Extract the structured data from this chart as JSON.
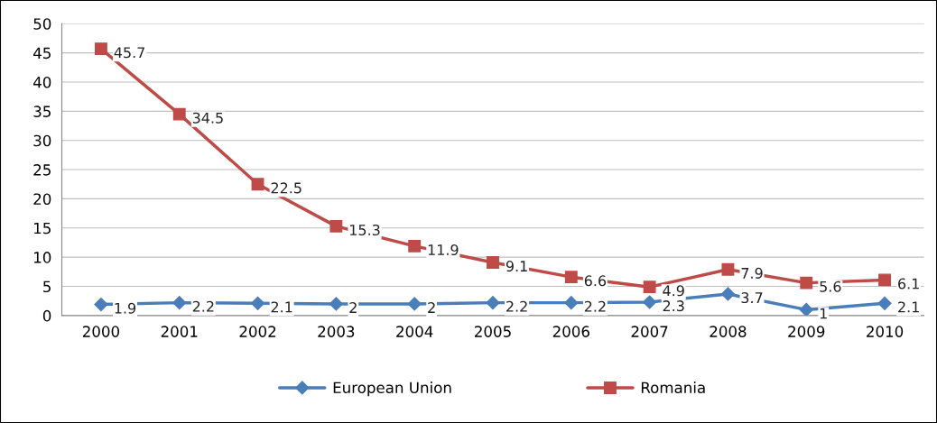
{
  "chart_data": {
    "type": "line",
    "categories": [
      "2000",
      "2001",
      "2002",
      "2003",
      "2004",
      "2005",
      "2006",
      "2007",
      "2008",
      "2009",
      "2010"
    ],
    "series": [
      {
        "name": "European Union",
        "color": "#4a7ebb",
        "marker": "diamond",
        "values": [
          1.9,
          2.2,
          2.1,
          2,
          2,
          2.2,
          2.2,
          2.3,
          3.7,
          1,
          2.1
        ]
      },
      {
        "name": "Romania",
        "color": "#be4b48",
        "marker": "square",
        "values": [
          45.7,
          34.5,
          22.5,
          15.3,
          11.9,
          9.1,
          6.6,
          4.9,
          7.9,
          5.6,
          6.1
        ]
      }
    ],
    "ylim": [
      0,
      50
    ],
    "yticks": [
      0,
      5,
      10,
      15,
      20,
      25,
      30,
      35,
      40,
      45,
      50
    ],
    "grid": "y",
    "legend": "bottom",
    "data_labels": true,
    "line_style": "solid"
  }
}
